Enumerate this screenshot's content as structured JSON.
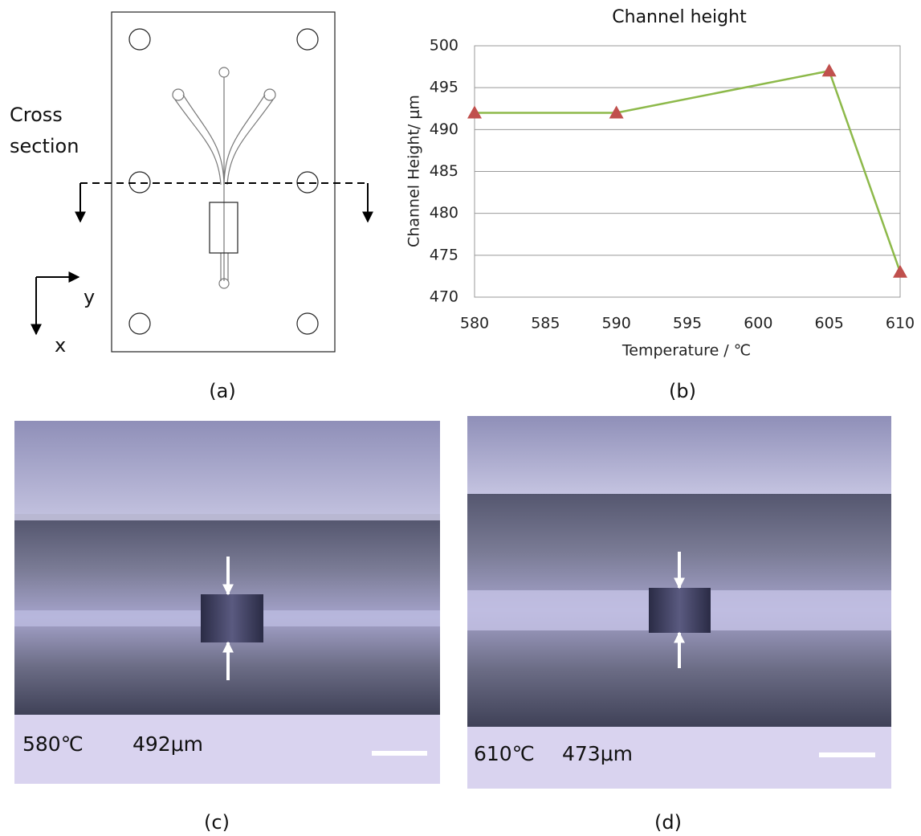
{
  "diagram": {
    "cross_section": [
      "Cross",
      "section"
    ],
    "axis_y": "y",
    "axis_x": "x",
    "label": "(a)"
  },
  "chart_data": {
    "type": "line",
    "title": "Channel height",
    "x_label": "Temperature / ℃",
    "y_label": "Channel Height/ μm",
    "x": [
      580,
      590,
      605,
      610
    ],
    "values": [
      492,
      492,
      497,
      473
    ],
    "color": "#8db94a",
    "marker_color": "#c0504d",
    "xlim": [
      580,
      610
    ],
    "xticks": [
      580,
      585,
      590,
      595,
      600,
      605,
      610
    ],
    "ylim": [
      470,
      500
    ],
    "yticks": [
      470,
      475,
      480,
      485,
      490,
      495,
      500
    ],
    "grid": true,
    "label": "(b)"
  },
  "photos": [
    {
      "temperature": "580℃",
      "height": "492μm",
      "label": "(c)"
    },
    {
      "temperature": "610℃",
      "height": "473μm",
      "label": "(d)"
    }
  ]
}
